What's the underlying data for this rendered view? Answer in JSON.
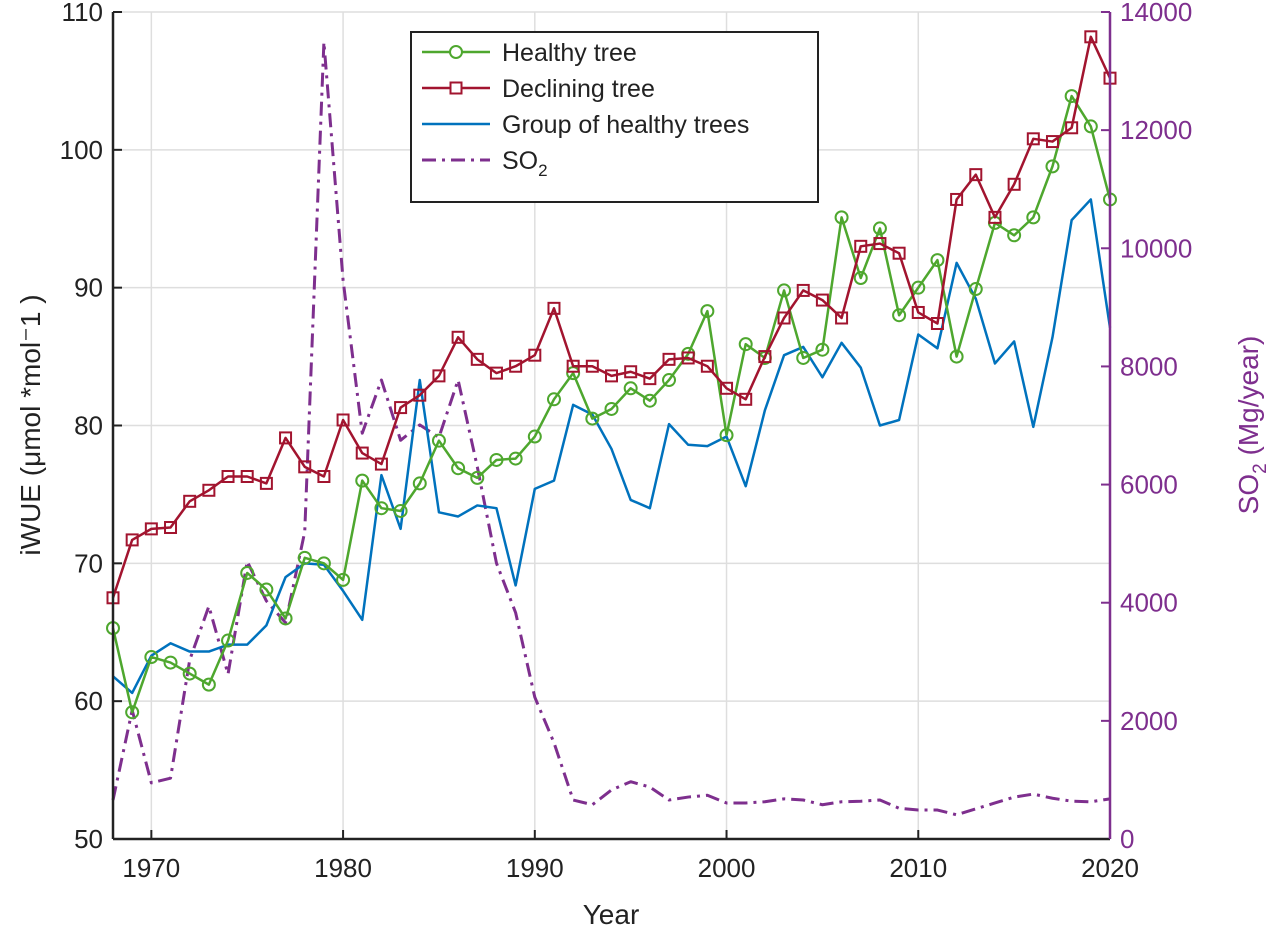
{
  "chart_data": {
    "type": "line",
    "xlabel": "Year",
    "ylabel": "iWUE (μmol *mol⁻1 )",
    "ylabel_right_main": "SO",
    "ylabel_right_sub": "2",
    "ylabel_right_rest": " (Mg/year)",
    "xlim": [
      1968,
      2020
    ],
    "ylim": [
      50,
      110
    ],
    "ylim_right": [
      0,
      14000
    ],
    "x_ticks": [
      "1970",
      "1980",
      "1990",
      "2000",
      "2010",
      "2020"
    ],
    "y_ticks": [
      "50",
      "60",
      "70",
      "80",
      "90",
      "100",
      "110"
    ],
    "y_ticks_right": [
      "0",
      "2000",
      "4000",
      "6000",
      "8000",
      "10000",
      "12000",
      "14000"
    ],
    "grid": true,
    "legend_position": "top-center",
    "x": [
      1968,
      1969,
      1970,
      1971,
      1972,
      1973,
      1974,
      1975,
      1976,
      1977,
      1978,
      1979,
      1980,
      1981,
      1982,
      1983,
      1984,
      1985,
      1986,
      1987,
      1988,
      1989,
      1990,
      1991,
      1992,
      1993,
      1994,
      1995,
      1996,
      1997,
      1998,
      1999,
      2000,
      2001,
      2002,
      2003,
      2004,
      2005,
      2006,
      2007,
      2008,
      2009,
      2010,
      2011,
      2012,
      2013,
      2014,
      2015,
      2016,
      2017,
      2018,
      2019,
      2020
    ],
    "series": [
      {
        "name": "Healthy tree",
        "axis": "left",
        "color": "#4ea72e",
        "marker": "circle",
        "style": "solid",
        "values": [
          65.3,
          59.2,
          63.2,
          62.8,
          62.0,
          61.2,
          64.4,
          69.3,
          68.1,
          66.0,
          70.4,
          70.0,
          68.8,
          76.0,
          74.0,
          73.8,
          75.8,
          78.9,
          76.9,
          76.2,
          77.5,
          77.6,
          79.2,
          81.9,
          83.8,
          80.5,
          81.2,
          82.7,
          81.8,
          83.3,
          85.2,
          88.3,
          79.3,
          85.9,
          84.9,
          89.8,
          84.9,
          85.5,
          95.1,
          90.7,
          94.3,
          88.0,
          90.0,
          92.0,
          85.0,
          89.9,
          94.7,
          93.8,
          95.1,
          98.8,
          103.9,
          101.7,
          96.4
        ]
      },
      {
        "name": "Declining tree",
        "axis": "left",
        "color": "#a2142f",
        "marker": "square",
        "style": "solid",
        "values": [
          67.5,
          71.7,
          72.5,
          72.6,
          74.5,
          75.3,
          76.3,
          76.3,
          75.8,
          79.1,
          77.0,
          76.3,
          80.4,
          78.0,
          77.2,
          81.3,
          82.2,
          83.6,
          86.4,
          84.8,
          83.8,
          84.3,
          85.1,
          88.5,
          84.3,
          84.3,
          83.6,
          83.9,
          83.4,
          84.8,
          84.9,
          84.3,
          82.7,
          81.9,
          85.0,
          87.8,
          89.8,
          89.1,
          87.8,
          93.0,
          93.2,
          92.5,
          88.2,
          87.4,
          96.4,
          98.2,
          95.1,
          97.5,
          100.8,
          100.6,
          101.6,
          108.2,
          105.2
        ]
      },
      {
        "name": "Group of healthy trees",
        "axis": "left",
        "color": "#0072bd",
        "marker": "none",
        "style": "solid",
        "values": [
          61.8,
          60.6,
          63.3,
          64.2,
          63.6,
          63.6,
          64.1,
          64.1,
          65.5,
          69.0,
          70.0,
          69.9,
          68.0,
          65.9,
          76.4,
          72.5,
          83.3,
          73.7,
          73.4,
          74.2,
          74.0,
          68.4,
          75.4,
          76.0,
          81.5,
          80.8,
          78.3,
          74.6,
          74.0,
          80.1,
          78.6,
          78.5,
          79.2,
          75.6,
          81.1,
          85.1,
          85.7,
          83.5,
          86.0,
          84.2,
          80.0,
          80.4,
          86.6,
          85.6,
          91.8,
          89.2,
          84.5,
          86.1,
          79.9,
          86.4,
          94.9,
          96.4,
          87.1
        ]
      },
      {
        "name": "SO2",
        "name_main": "SO",
        "name_sub": "2",
        "axis": "right",
        "color": "#7e2f8e",
        "marker": "none",
        "style": "dash-dot",
        "values": [
          660,
          2180,
          950,
          1030,
          3030,
          3940,
          2790,
          4700,
          4030,
          3660,
          5200,
          13490,
          9460,
          6870,
          7770,
          6750,
          7010,
          6800,
          7770,
          6300,
          4670,
          3830,
          2400,
          1630,
          660,
          580,
          830,
          970,
          880,
          660,
          710,
          740,
          610,
          610,
          630,
          680,
          660,
          580,
          630,
          640,
          660,
          520,
          490,
          490,
          410,
          510,
          610,
          710,
          760,
          690,
          640,
          630,
          680
        ]
      }
    ]
  }
}
